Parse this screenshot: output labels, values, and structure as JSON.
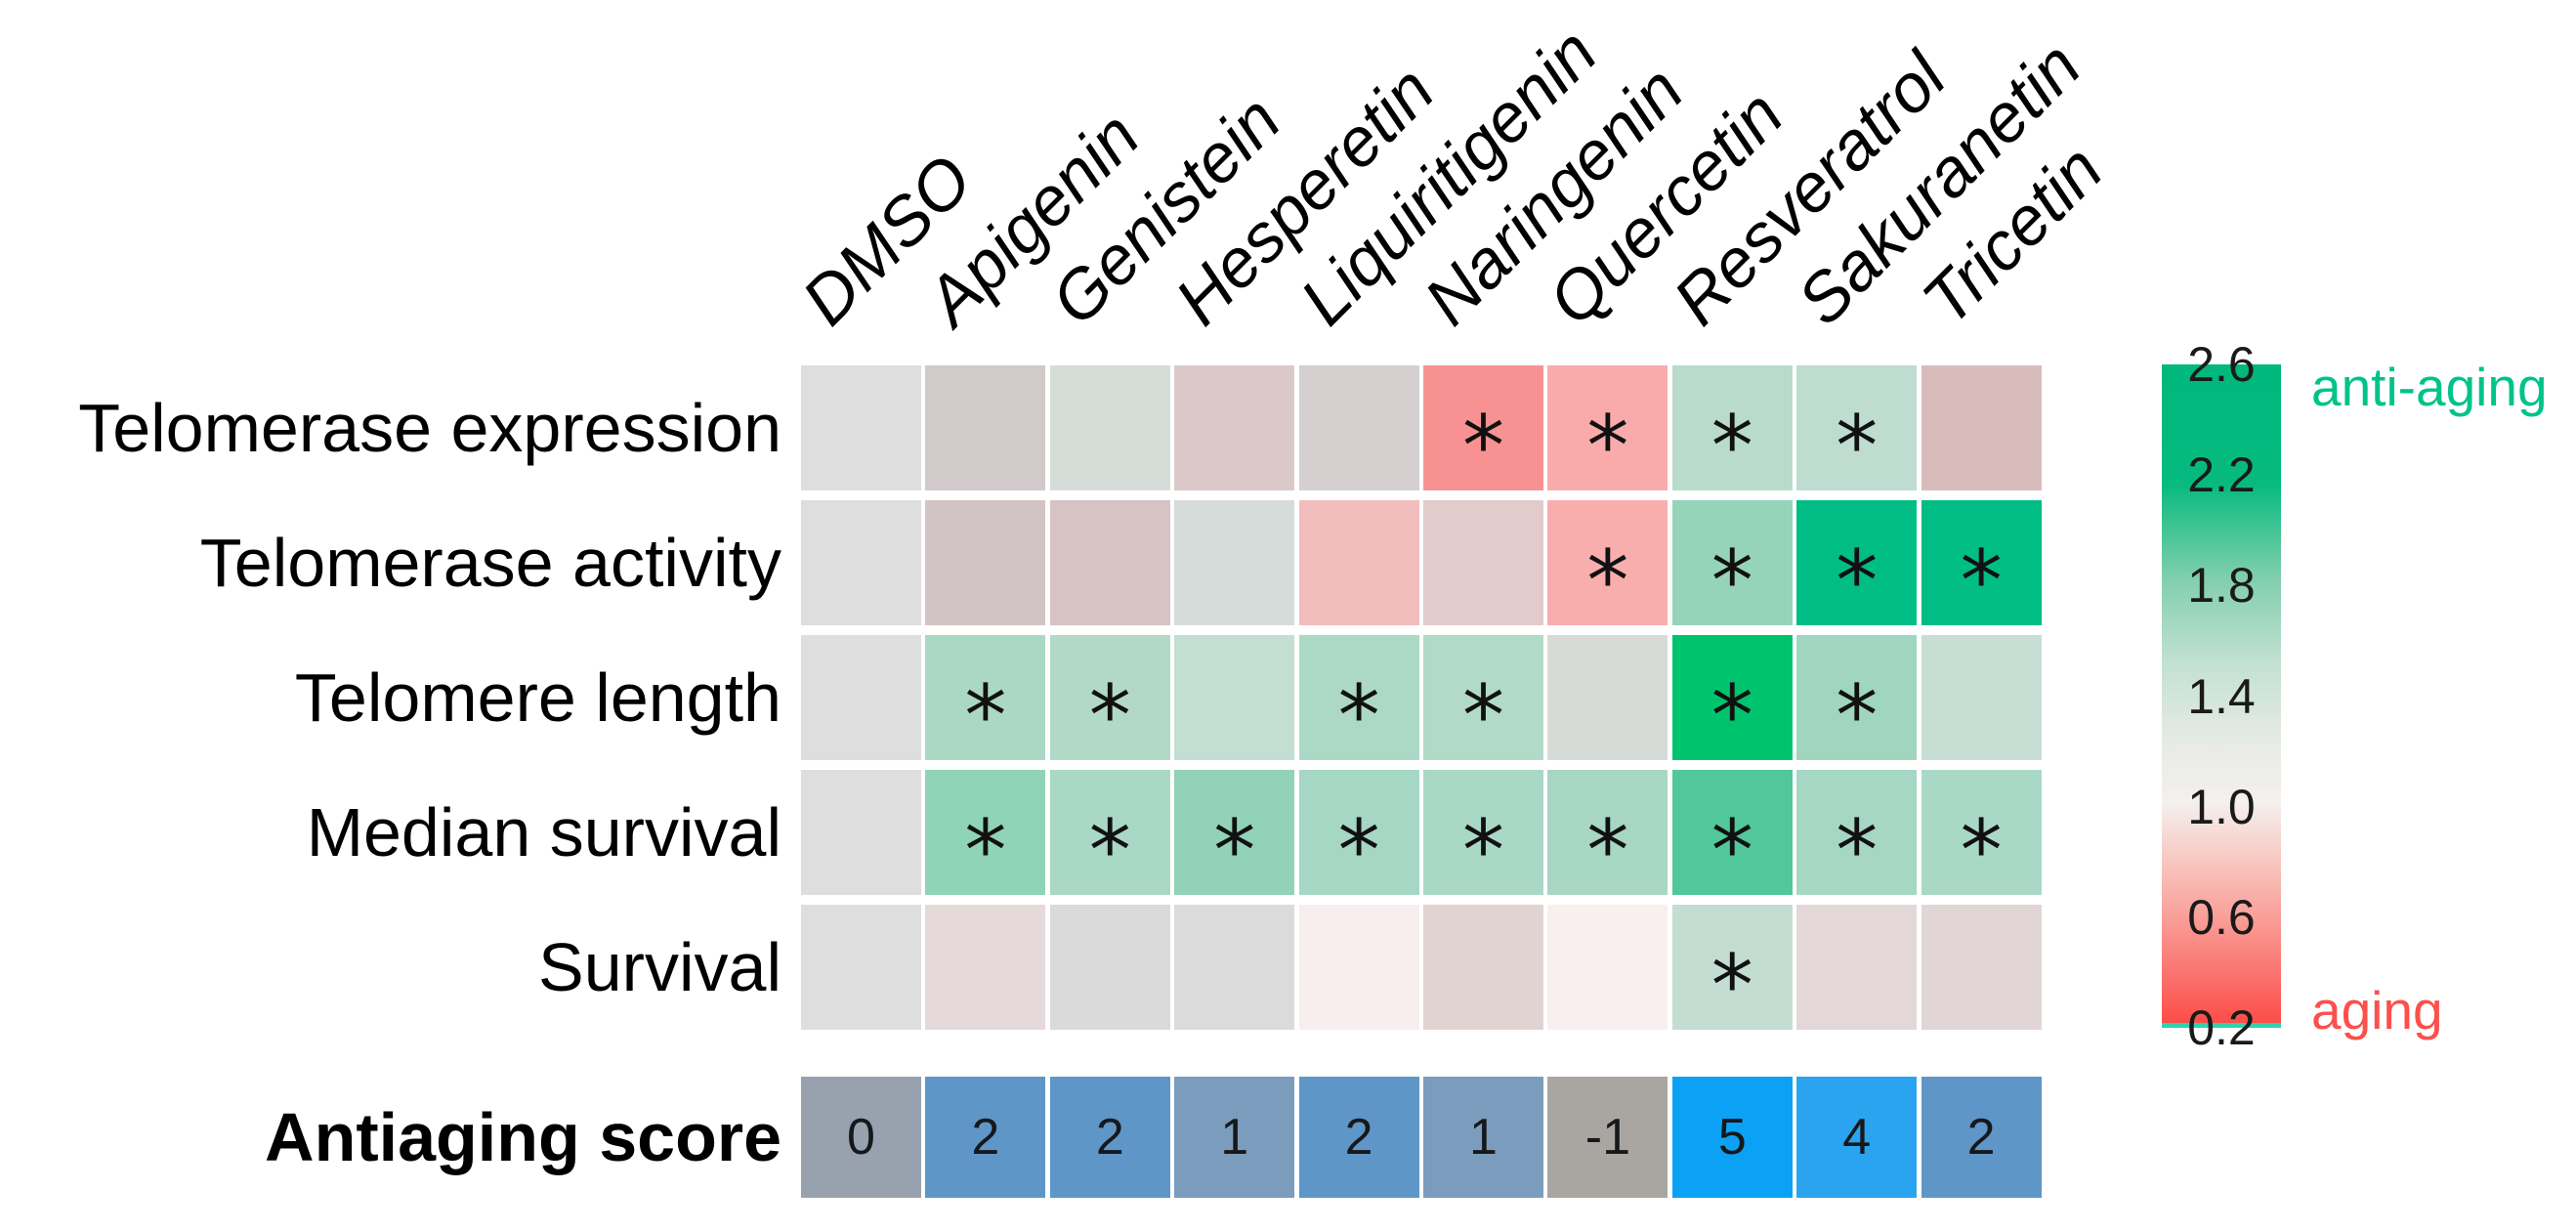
{
  "chart_data": {
    "type": "heatmap",
    "significance_marker": "*",
    "value_scale": {
      "min": 0.2,
      "neutral": 1.0,
      "max": 2.6
    },
    "columns": [
      "DMSO",
      "Apigenin",
      "Genistein",
      "Hesperetin",
      "Liquiritigenin",
      "Naringenin",
      "Quercetin",
      "Resveratrol",
      "Sakuranetin",
      "Tricetin"
    ],
    "rows": [
      {
        "label": "Telomerase expression",
        "values": [
          1.0,
          0.95,
          1.05,
          0.9,
          0.95,
          0.55,
          0.65,
          1.25,
          1.2,
          0.8
        ],
        "colors": [
          "#dedede",
          "#d2caca",
          "#d6ddd9",
          "#dbc9c9",
          "#d5cfcf",
          "#f89292",
          "#f9abab",
          "#b8dbcb",
          "#bedcd0",
          "#d8bcbc"
        ],
        "significant": [
          false,
          false,
          false,
          false,
          false,
          true,
          true,
          true,
          true,
          false
        ]
      },
      {
        "label": "Telomerase activity",
        "values": [
          1.0,
          0.9,
          0.85,
          1.05,
          0.7,
          0.85,
          0.65,
          1.6,
          2.3,
          2.3
        ],
        "colors": [
          "#dedede",
          "#d2c4c4",
          "#d7c3c3",
          "#d6dcd9",
          "#f1bdbd",
          "#e3cbcb",
          "#f9aeae",
          "#96d4ba",
          "#00bd85",
          "#00bd85"
        ],
        "significant": [
          false,
          false,
          false,
          false,
          false,
          false,
          true,
          true,
          true,
          true
        ]
      },
      {
        "label": "Telomere length",
        "values": [
          1.0,
          1.5,
          1.45,
          1.3,
          1.5,
          1.45,
          1.0,
          2.5,
          1.55,
          1.25
        ],
        "colors": [
          "#dedede",
          "#abd8c5",
          "#b2d9c7",
          "#c3ded3",
          "#abd9c5",
          "#b1dac8",
          "#d7dbd8",
          "#00c36e",
          "#a0d5c0",
          "#c6ded4"
        ],
        "significant": [
          false,
          true,
          true,
          false,
          true,
          true,
          false,
          true,
          true,
          false
        ]
      },
      {
        "label": "Median survival",
        "values": [
          1.0,
          1.7,
          1.5,
          1.65,
          1.55,
          1.5,
          1.5,
          1.95,
          1.55,
          1.5
        ],
        "colors": [
          "#dedede",
          "#90d4b8",
          "#a9d8c6",
          "#92d2b8",
          "#a5d7c4",
          "#a9d8c6",
          "#a8d6c4",
          "#50c89c",
          "#a5d7c4",
          "#aad8c7"
        ],
        "significant": [
          false,
          true,
          true,
          true,
          true,
          true,
          true,
          true,
          true,
          true
        ]
      },
      {
        "label": "Survival",
        "values": [
          1.0,
          0.95,
          1.0,
          1.0,
          1.0,
          0.95,
          1.0,
          1.3,
          0.95,
          0.95
        ],
        "colors": [
          "#dedede",
          "#e5d9d9",
          "#dbdada",
          "#dadbda",
          "#f8eeee",
          "#e2d3d3",
          "#f9efef",
          "#c3ddd2",
          "#e3d7d7",
          "#e1d5d5"
        ],
        "significant": [
          false,
          false,
          false,
          false,
          false,
          false,
          false,
          true,
          false,
          false
        ]
      }
    ],
    "score_row": {
      "label": "Antiaging score",
      "values": [
        0,
        2,
        2,
        1,
        2,
        1,
        -1,
        5,
        4,
        2
      ],
      "colors": [
        "#97a2ae",
        "#5f96c8",
        "#5f96c8",
        "#7c9cbd",
        "#5f96c8",
        "#7c9cbd",
        "#a9a5a1",
        "#0ba2f5",
        "#2ba4ef",
        "#5f96c8"
      ]
    },
    "colorbar": {
      "ticks": [
        "2.6",
        "2.2",
        "1.8",
        "1.4",
        "1.0",
        "0.6",
        "0.2"
      ],
      "top_label": "anti-aging",
      "bottom_label": "aging",
      "top_label_color": "#00c389",
      "bottom_label_color": "#fd4f4b",
      "end_line_color": "#2ed3ae",
      "gradient": [
        {
          "color": "#00b87c",
          "pos": 0
        },
        {
          "color": "#07ba7f",
          "pos": 18
        },
        {
          "color": "#7fceac",
          "pos": 32
        },
        {
          "color": "#c3e1d3",
          "pos": 45
        },
        {
          "color": "#e9ebe7",
          "pos": 58
        },
        {
          "color": "#f4f0ee",
          "pos": 66
        },
        {
          "color": "#f8cbc5",
          "pos": 74
        },
        {
          "color": "#f99c95",
          "pos": 84
        },
        {
          "color": "#fd4946",
          "pos": 100
        }
      ]
    }
  }
}
